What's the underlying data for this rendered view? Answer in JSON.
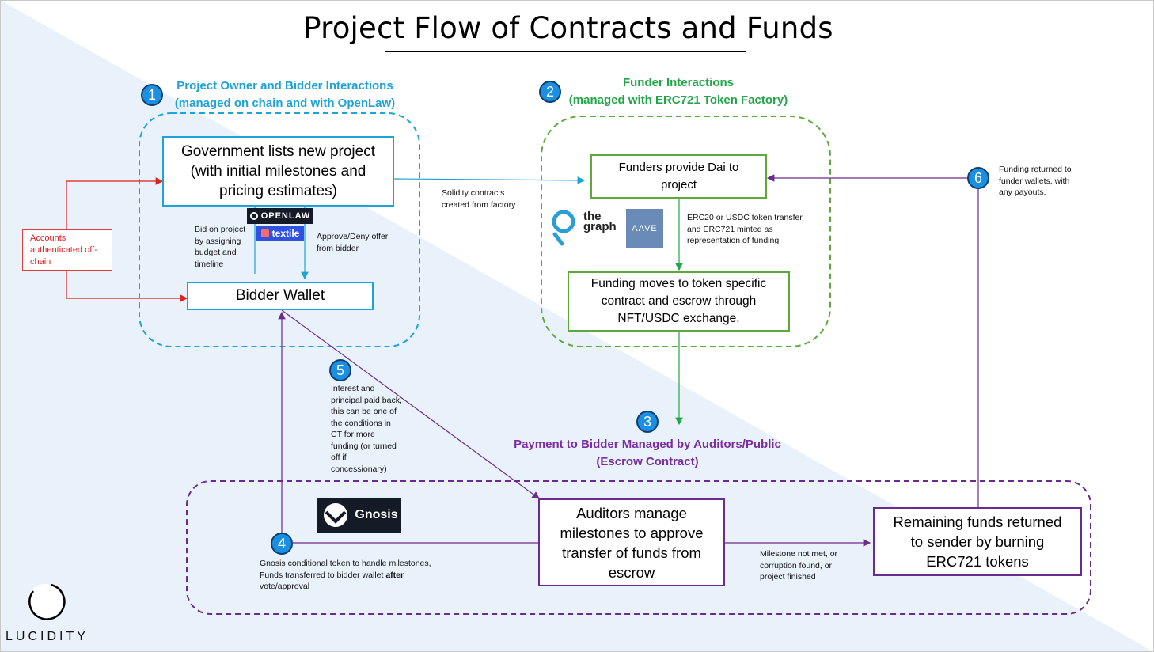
{
  "title": "Project Flow of Contracts and Funds",
  "colors": {
    "blue": "#1ea3d8",
    "green": "#5fa83c",
    "purple": "#6b2a8e",
    "red": "#e21f1f",
    "step_circle": "#1b8fe0",
    "background_wedge": "#e9f1fb"
  },
  "sections": {
    "owner": {
      "step": "1",
      "line1": "Project Owner and Bidder Interactions",
      "line2": "(managed on chain and with OpenLaw)"
    },
    "funder": {
      "step": "2",
      "line1": "Funder Interactions",
      "line2": "(managed with ERC721 Token Factory)"
    },
    "payment": {
      "step": "3",
      "line1": "Payment to Bidder Managed by Auditors/Public",
      "line2": "(Escrow Contract)"
    }
  },
  "boxes": {
    "gov": "Government lists new project (with initial milestones and pricing estimates)",
    "bidder_wallet": "Bidder Wallet",
    "funders": "Funders provide Dai to project",
    "funding_moves": "Funding moves to token specific contract and escrow through NFT/USDC exchange.",
    "auditors": "Auditors manage milestones to approve transfer of funds from escrow",
    "remaining": "Remaining funds returned to sender by burning ERC721 tokens",
    "accounts": "Accounts authenticated off-chain"
  },
  "notes": {
    "bid": "Bid on project by assigning budget and timeline",
    "approve": "Approve/Deny offer from bidder",
    "solidity": "Solidity contracts created from factory",
    "erc20": "ERC20 or USDC token transfer and ERC721 minted as representation of funding",
    "funding_returned": "Funding returned to funder wallets, with any payouts.",
    "interest": "Interest and principal paid back, this can be one of the conditions in CT for more funding (or turned off if concessionary)",
    "gnosis_a": "Gnosis conditional token to handle milestones, Funds transferred to bidder wallet ",
    "gnosis_b": "after",
    "gnosis_c": " vote/approval",
    "milestone": "Milestone not met, or corruption found, or project finished"
  },
  "steps": {
    "four": "4",
    "five": "5",
    "six": "6"
  },
  "logos": {
    "openlaw": "OPENLAW",
    "textile": "textile",
    "thegraph_1": "the",
    "thegraph_2": "graph",
    "aave": "AAVE",
    "gnosis": "Gnosis",
    "lucidity": "LUCIDITY"
  },
  "icons": [
    "openlaw-logo-icon",
    "textile-logo-icon",
    "the-graph-logo-icon",
    "aave-logo-icon",
    "gnosis-owl-icon",
    "lucidity-circle-icon"
  ]
}
